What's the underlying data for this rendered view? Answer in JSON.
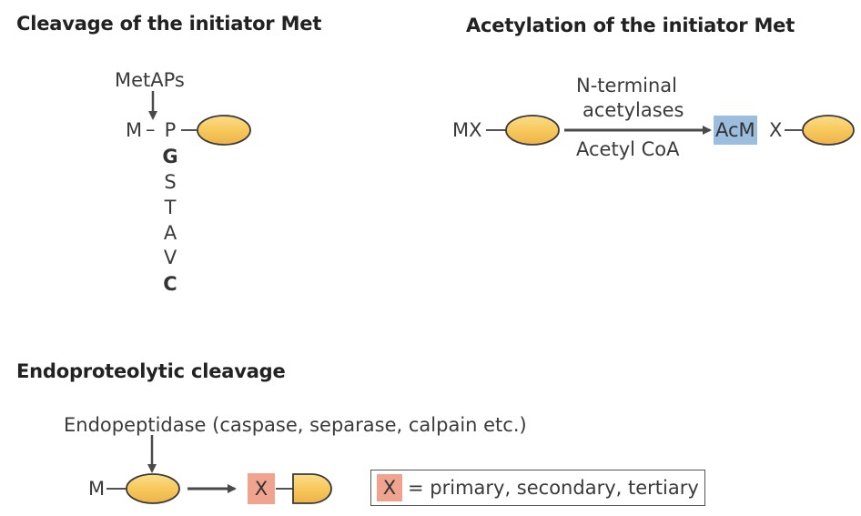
{
  "sections": {
    "cleavage": {
      "title": "Cleavage of the initiator Met",
      "enzyme": "MetAPs",
      "met": "M",
      "dash": "–",
      "residues": [
        "P",
        "G",
        "S",
        "T",
        "A",
        "V",
        "C"
      ]
    },
    "acetylation": {
      "title": "Acetylation of the initiator Met",
      "substrate": "MX",
      "enzyme_line1": "N-terminal",
      "enzyme_line2": "acetylases",
      "cofactor": "Acetyl CoA",
      "product_box": "AcM",
      "product_rest": "X"
    },
    "endoproteolytic": {
      "title": "Endoproteolytic cleavage",
      "enzyme": "Endopeptidase (caspase, separase, calpain etc.)",
      "met": "M",
      "product_box": "X",
      "legend_box": "X",
      "legend_text": "= primary, secondary, tertiary"
    }
  },
  "colors": {
    "protein_fill": "#f7c95c",
    "protein_stroke": "#3a3a3a",
    "acetyl_box": "#9bbedf",
    "neo_box": "#f0a38e",
    "arrow": "#4a4a4a"
  }
}
